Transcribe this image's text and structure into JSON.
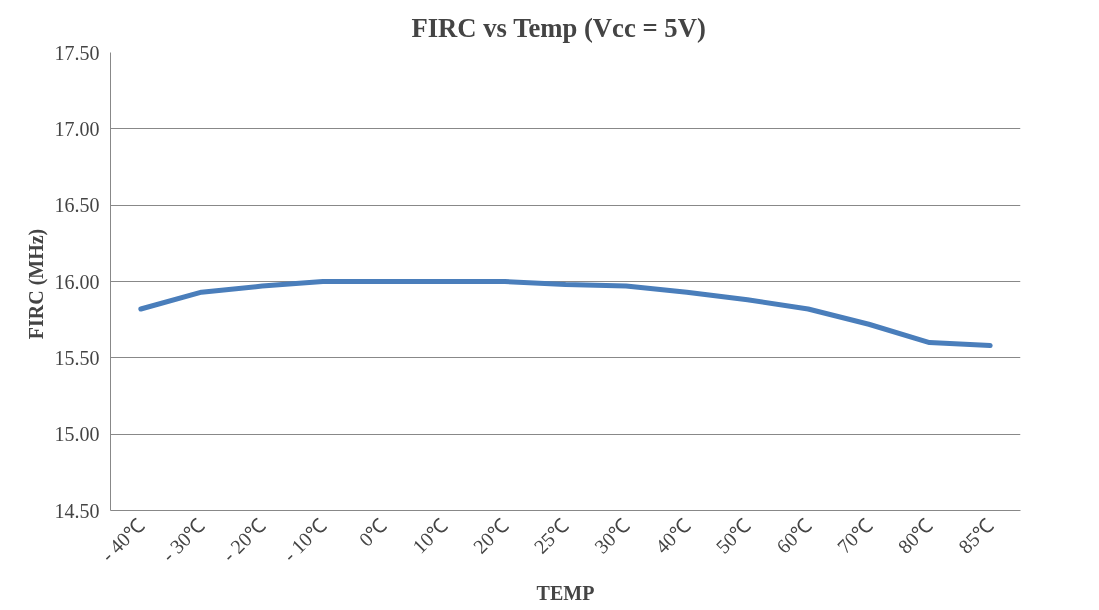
{
  "chart_data": {
    "type": "line",
    "title": "FIRC vs Temp   (Vcc = 5V)",
    "xlabel": "TEMP",
    "ylabel": "FIRC  (MHz)",
    "categories": [
      "- 40℃",
      "- 30℃",
      "- 20℃",
      "- 10℃",
      "0℃",
      "10℃",
      "20℃",
      "25℃",
      "30℃",
      "40℃",
      "50℃",
      "60℃",
      "70℃",
      "80℃",
      "85℃"
    ],
    "series": [
      {
        "color": "#4a7ebb",
        "values": [
          15.82,
          15.93,
          15.97,
          16.0,
          16.0,
          16.0,
          16.0,
          15.98,
          15.97,
          15.93,
          15.88,
          15.82,
          15.72,
          15.6,
          15.58
        ]
      }
    ],
    "ylim": [
      14.5,
      17.5
    ],
    "yticks": [
      {
        "value": 14.5,
        "label": "14.50"
      },
      {
        "value": 15,
        "label": "15.00"
      },
      {
        "value": 15.5,
        "label": "15.50"
      },
      {
        "value": 16,
        "label": "16.00"
      },
      {
        "value": 16.5,
        "label": "16.50"
      },
      {
        "value": 17,
        "label": "17.00"
      },
      {
        "value": 17.5,
        "label": "17.50"
      }
    ],
    "grid": "y",
    "marker": "none",
    "line_style": "solid"
  }
}
